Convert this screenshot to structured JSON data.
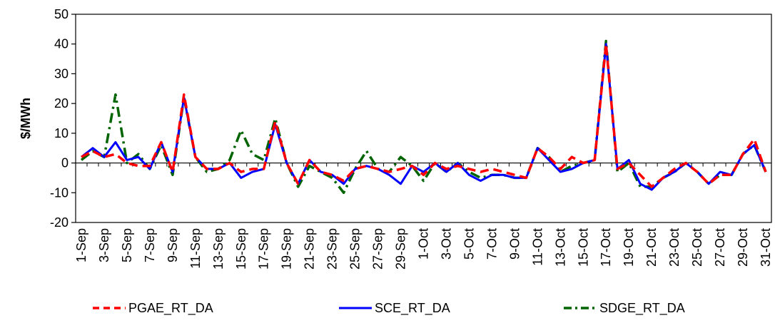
{
  "chart_data": {
    "type": "line",
    "ylabel": "$/MWh",
    "ylim": [
      -20,
      50
    ],
    "yticks": [
      -20,
      -10,
      0,
      10,
      20,
      30,
      40,
      50
    ],
    "grid": false,
    "legend": "bottom",
    "categories": [
      "1-Sep",
      "2-Sep",
      "3-Sep",
      "4-Sep",
      "5-Sep",
      "6-Sep",
      "7-Sep",
      "8-Sep",
      "9-Sep",
      "10-Sep",
      "11-Sep",
      "12-Sep",
      "13-Sep",
      "14-Sep",
      "15-Sep",
      "16-Sep",
      "17-Sep",
      "18-Sep",
      "19-Sep",
      "20-Sep",
      "21-Sep",
      "22-Sep",
      "23-Sep",
      "24-Sep",
      "25-Sep",
      "26-Sep",
      "27-Sep",
      "28-Sep",
      "29-Sep",
      "30-Sep",
      "1-Oct",
      "2-Oct",
      "3-Oct",
      "4-Oct",
      "5-Oct",
      "6-Oct",
      "7-Oct",
      "8-Oct",
      "9-Oct",
      "10-Oct",
      "11-Oct",
      "12-Oct",
      "13-Oct",
      "14-Oct",
      "15-Oct",
      "16-Oct",
      "17-Oct",
      "18-Oct",
      "19-Oct",
      "20-Oct",
      "21-Oct",
      "22-Oct",
      "23-Oct",
      "24-Oct",
      "25-Oct",
      "26-Oct",
      "27-Oct",
      "28-Oct",
      "29-Oct",
      "30-Oct",
      "31-Oct"
    ],
    "xtick_labels": [
      "1-Sep",
      "3-Sep",
      "5-Sep",
      "7-Sep",
      "9-Sep",
      "11-Sep",
      "13-Sep",
      "15-Sep",
      "17-Sep",
      "19-Sep",
      "21-Sep",
      "23-Sep",
      "25-Sep",
      "27-Sep",
      "29-Sep",
      "1-Oct",
      "3-Oct",
      "5-Oct",
      "7-Oct",
      "9-Oct",
      "11-Oct",
      "13-Oct",
      "15-Oct",
      "17-Oct",
      "19-Oct",
      "21-Oct",
      "23-Oct",
      "25-Oct",
      "27-Oct",
      "29-Oct",
      "31-Oct"
    ],
    "series": [
      {
        "name": "PGAE_RT_DA",
        "color": "#ff0000",
        "dash": "dashed",
        "values": [
          2,
          4,
          2,
          3,
          0,
          -1,
          -1,
          7,
          -3,
          23,
          2,
          -2,
          -2,
          0,
          -3,
          -2,
          -2,
          14,
          0,
          -7,
          1,
          -3,
          -4,
          -6,
          -2,
          -1,
          -2,
          -3,
          -2,
          -1,
          -4,
          0,
          -2,
          -1,
          -2,
          -3,
          -2,
          -3,
          -4,
          -5,
          5,
          2,
          -2,
          2,
          0,
          1,
          40,
          -2,
          0,
          -4,
          -8,
          -5,
          -2,
          0,
          -3,
          -7,
          -4,
          -4,
          3,
          8,
          -3
        ]
      },
      {
        "name": "SCE_RT_DA",
        "color": "#0000ff",
        "dash": "solid",
        "values": [
          2,
          5,
          2,
          7,
          1,
          2,
          -2,
          7,
          -3,
          22,
          2,
          -2,
          -2,
          0,
          -5,
          -3,
          -2,
          13,
          0,
          -7,
          1,
          -3,
          -4,
          -7,
          -2,
          -1,
          -2,
          -4,
          -7,
          -1,
          -3,
          0,
          -3,
          0,
          -4,
          -6,
          -4,
          -4,
          -5,
          -5,
          5,
          1,
          -3,
          -2,
          0,
          1,
          40,
          -2,
          1,
          -7,
          -9,
          -5,
          -3,
          0,
          -3,
          -7,
          -3,
          -4,
          3,
          6,
          -3
        ]
      },
      {
        "name": "SDGE_RT_DA",
        "color": "#006400",
        "dash": "dashdot",
        "values": [
          1,
          4,
          2,
          23,
          0,
          3,
          -2,
          6,
          -4,
          22,
          2,
          -3,
          -2,
          1,
          11,
          3,
          1,
          15,
          0,
          -8,
          -1,
          -3,
          -5,
          -10,
          -2,
          4,
          -2,
          -3,
          2,
          -1,
          -6,
          0,
          -3,
          0,
          -3,
          -5,
          -4,
          -4,
          -5,
          -5,
          5,
          2,
          -3,
          -1,
          0,
          1,
          41,
          -3,
          0,
          -8,
          -8,
          -5,
          -3,
          0,
          -3,
          -7,
          -4,
          -4,
          3,
          6,
          -3
        ]
      }
    ]
  }
}
